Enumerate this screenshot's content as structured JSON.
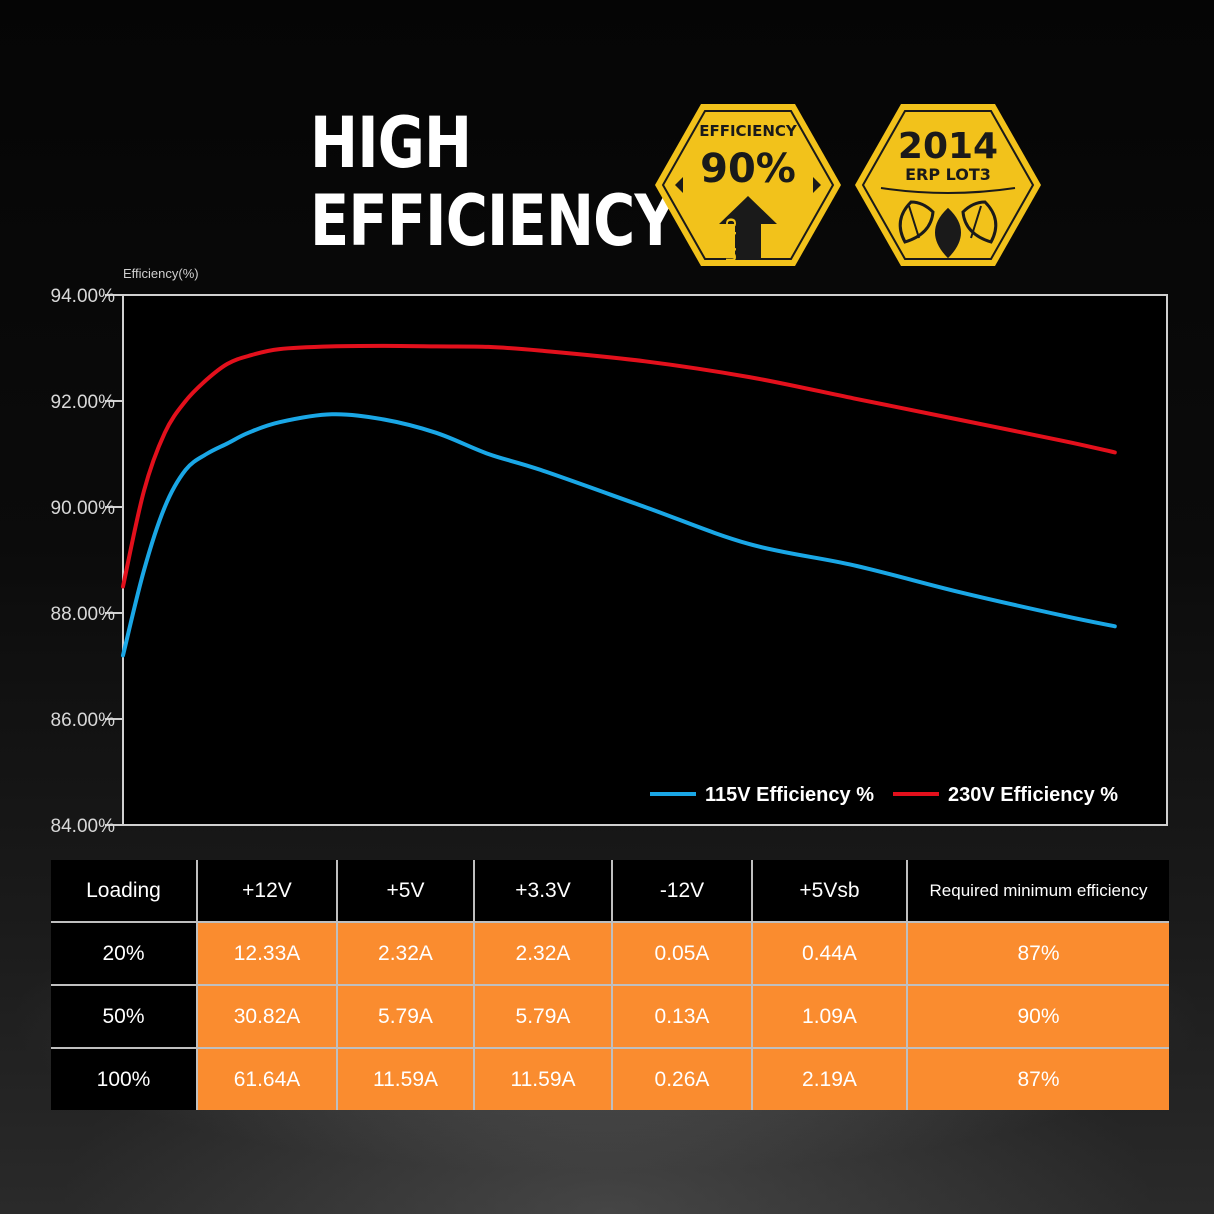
{
  "headline": {
    "line1": "HIGH",
    "line2": "EFFICIENCY"
  },
  "badges": {
    "efficiency": {
      "top": "EFFICIENCY",
      "value": "90%",
      "arrow": "UP TO"
    },
    "erp": {
      "year": "2014",
      "label": "ERP LOT3"
    },
    "colors": {
      "gold": "#f2c21b",
      "dark": "#1a1a1a"
    }
  },
  "chart_data": {
    "type": "line",
    "ylabel": "Efficiency(%)",
    "xlabel": "",
    "ylim": [
      84,
      94
    ],
    "yticks": [
      "94.00%",
      "92.00%",
      "90.00%",
      "88.00%",
      "86.00%",
      "84.00%"
    ],
    "ytick_values": [
      94,
      92,
      90,
      88,
      86,
      84
    ],
    "x_range": [
      0,
      100
    ],
    "grid": false,
    "legend_position": "bottom-right",
    "series": [
      {
        "name": "115V Efficiency %",
        "color": "#1aa7e6",
        "x": [
          0,
          2,
          4,
          6,
          8,
          10,
          12,
          15,
          20,
          25,
          30,
          35,
          40,
          50,
          60,
          70,
          80,
          90,
          95
        ],
        "y": [
          87.2,
          88.8,
          90.0,
          90.7,
          91.0,
          91.2,
          91.4,
          91.6,
          91.75,
          91.65,
          91.4,
          91.0,
          90.7,
          90.0,
          89.3,
          88.9,
          88.4,
          87.95,
          87.75
        ]
      },
      {
        "name": "230V Efficiency %",
        "color": "#e3101c",
        "x": [
          0,
          2,
          4,
          6,
          8,
          10,
          12,
          15,
          20,
          25,
          30,
          35,
          40,
          50,
          60,
          70,
          80,
          90,
          95
        ],
        "y": [
          88.5,
          90.3,
          91.4,
          92.0,
          92.4,
          92.7,
          92.85,
          92.98,
          93.03,
          93.04,
          93.03,
          93.02,
          92.95,
          92.75,
          92.45,
          92.05,
          91.65,
          91.25,
          91.03
        ]
      }
    ]
  },
  "table": {
    "headers": [
      "Loading",
      "+12V",
      "+5V",
      "+3.3V",
      "-12V",
      "+5Vsb",
      "Required minimum efficiency"
    ],
    "rows": [
      [
        "20%",
        "12.33A",
        "2.32A",
        "2.32A",
        "0.05A",
        "0.44A",
        "87%"
      ],
      [
        "50%",
        "30.82A",
        "5.79A",
        "5.79A",
        "0.13A",
        "1.09A",
        "90%"
      ],
      [
        "100%",
        "61.64A",
        "11.59A",
        "11.59A",
        "0.26A",
        "2.19A",
        "87%"
      ]
    ],
    "colors": {
      "header_bg": "#000000",
      "cell_bg": "#fa8c2f"
    }
  }
}
